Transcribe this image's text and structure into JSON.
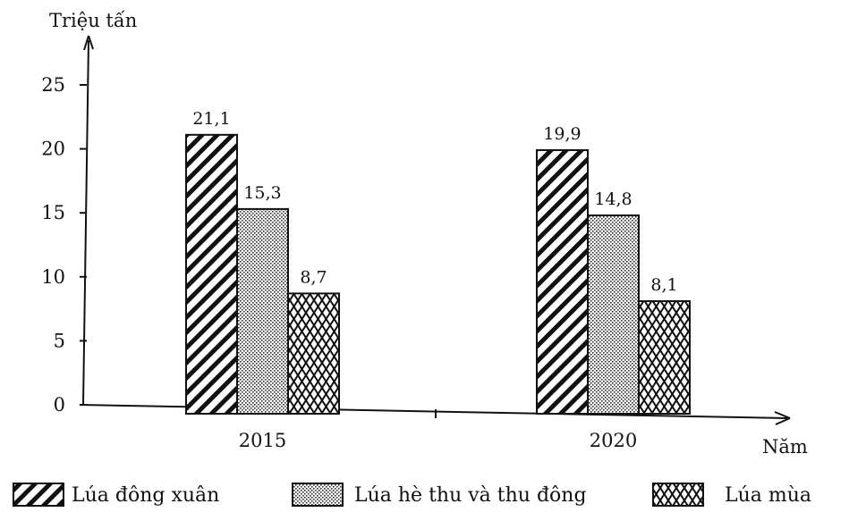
{
  "chart_data": {
    "type": "bar",
    "ylabel": "Triệu tấn",
    "xlabel": "Năm",
    "ylim": [
      0,
      25
    ],
    "yticks": [
      0,
      5,
      10,
      15,
      20,
      25
    ],
    "categories": [
      "2015",
      "2020"
    ],
    "series": [
      {
        "name": "Lúa đông xuân",
        "values": [
          21.1,
          19.9
        ],
        "labels": [
          "21,1",
          "19,9"
        ],
        "pattern": "diagonal"
      },
      {
        "name": "Lúa hè thu và thu đông",
        "values": [
          15.3,
          14.8
        ],
        "labels": [
          "15,3",
          "14,8"
        ],
        "pattern": "dots"
      },
      {
        "name": "Lúa mùa",
        "values": [
          8.7,
          8.1
        ],
        "labels": [
          "8,7",
          "8,1"
        ],
        "pattern": "brick"
      }
    ],
    "grid": false,
    "legend_position": "bottom"
  }
}
